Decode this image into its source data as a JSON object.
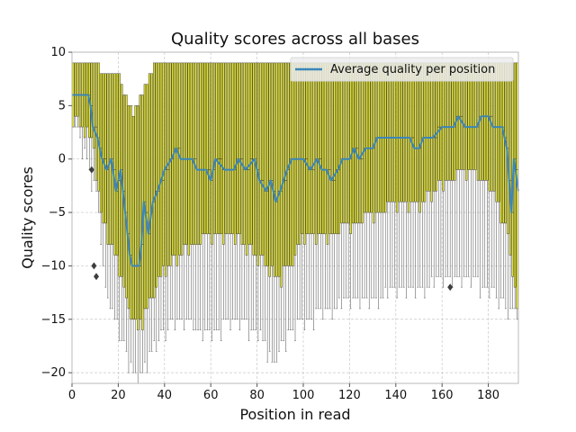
{
  "chart_data": {
    "type": "box",
    "title": "Quality scores across all bases",
    "xlabel": "Position in read",
    "ylabel": "Quality scores",
    "xlim": [
      0,
      193
    ],
    "ylim": [
      -21,
      10
    ],
    "x_ticks": [
      "0",
      "20",
      "40",
      "60",
      "80",
      "100",
      "120",
      "140",
      "160",
      "180"
    ],
    "y_ticks": [
      "10",
      "5",
      "0",
      "−5",
      "−10",
      "−15",
      "−20"
    ],
    "grid": true,
    "legend_position": "top-right",
    "box_color": "#e3e32a",
    "line_color": "#3a86b8",
    "series": [
      {
        "name": "Average quality per position",
        "type": "line",
        "key_points": [
          {
            "x": 0,
            "y": 6
          },
          {
            "x": 7,
            "y": 6
          },
          {
            "x": 8,
            "y": 5
          },
          {
            "x": 9,
            "y": 3
          },
          {
            "x": 11,
            "y": 2
          },
          {
            "x": 13,
            "y": 0
          },
          {
            "x": 15,
            "y": -1
          },
          {
            "x": 17,
            "y": 0
          },
          {
            "x": 19,
            "y": -3
          },
          {
            "x": 21,
            "y": -1
          },
          {
            "x": 23,
            "y": -5
          },
          {
            "x": 25,
            "y": -9
          },
          {
            "x": 26,
            "y": -10
          },
          {
            "x": 29,
            "y": -10
          },
          {
            "x": 30,
            "y": -8
          },
          {
            "x": 31,
            "y": -4
          },
          {
            "x": 33,
            "y": -7
          },
          {
            "x": 35,
            "y": -4
          },
          {
            "x": 37,
            "y": -3
          },
          {
            "x": 40,
            "y": -1
          },
          {
            "x": 43,
            "y": 0
          },
          {
            "x": 45,
            "y": 1
          },
          {
            "x": 47,
            "y": 0
          },
          {
            "x": 52,
            "y": 0
          },
          {
            "x": 54,
            "y": -1
          },
          {
            "x": 58,
            "y": -1
          },
          {
            "x": 60,
            "y": -2
          },
          {
            "x": 62,
            "y": 0
          },
          {
            "x": 66,
            "y": -1
          },
          {
            "x": 70,
            "y": -1
          },
          {
            "x": 72,
            "y": 0
          },
          {
            "x": 75,
            "y": -1
          },
          {
            "x": 79,
            "y": 0
          },
          {
            "x": 81,
            "y": -2
          },
          {
            "x": 84,
            "y": -3
          },
          {
            "x": 86,
            "y": -2
          },
          {
            "x": 88,
            "y": -4
          },
          {
            "x": 90,
            "y": -3
          },
          {
            "x": 93,
            "y": -1
          },
          {
            "x": 95,
            "y": 0
          },
          {
            "x": 100,
            "y": 0
          },
          {
            "x": 103,
            "y": -1
          },
          {
            "x": 106,
            "y": 0
          },
          {
            "x": 108,
            "y": -1
          },
          {
            "x": 110,
            "y": -1
          },
          {
            "x": 112,
            "y": -2
          },
          {
            "x": 115,
            "y": -1
          },
          {
            "x": 117,
            "y": 0
          },
          {
            "x": 120,
            "y": 0
          },
          {
            "x": 122,
            "y": 1
          },
          {
            "x": 124,
            "y": 0
          },
          {
            "x": 127,
            "y": 1
          },
          {
            "x": 130,
            "y": 1
          },
          {
            "x": 132,
            "y": 2
          },
          {
            "x": 138,
            "y": 2
          },
          {
            "x": 142,
            "y": 2
          },
          {
            "x": 146,
            "y": 2
          },
          {
            "x": 148,
            "y": 1
          },
          {
            "x": 150,
            "y": 1
          },
          {
            "x": 152,
            "y": 2
          },
          {
            "x": 156,
            "y": 2
          },
          {
            "x": 160,
            "y": 3
          },
          {
            "x": 163,
            "y": 3
          },
          {
            "x": 165,
            "y": 3
          },
          {
            "x": 167,
            "y": 4
          },
          {
            "x": 170,
            "y": 3
          },
          {
            "x": 175,
            "y": 3
          },
          {
            "x": 177,
            "y": 4
          },
          {
            "x": 180,
            "y": 4
          },
          {
            "x": 182,
            "y": 3
          },
          {
            "x": 186,
            "y": 3
          },
          {
            "x": 188,
            "y": 1
          },
          {
            "x": 190,
            "y": -5
          },
          {
            "x": 191,
            "y": 0
          },
          {
            "x": 193,
            "y": -3
          }
        ]
      }
    ],
    "box_envelope": {
      "positions": "0-192",
      "q3_key": [
        {
          "x": 0,
          "y": 9
        },
        {
          "x": 10,
          "y": 9
        },
        {
          "x": 12,
          "y": 8
        },
        {
          "x": 20,
          "y": 8
        },
        {
          "x": 22,
          "y": 6
        },
        {
          "x": 26,
          "y": 4
        },
        {
          "x": 30,
          "y": 6
        },
        {
          "x": 35,
          "y": 9
        },
        {
          "x": 192,
          "y": 9
        }
      ],
      "q1_key": [
        {
          "x": 0,
          "y": 4
        },
        {
          "x": 8,
          "y": 2
        },
        {
          "x": 10,
          "y": -1
        },
        {
          "x": 12,
          "y": -5
        },
        {
          "x": 16,
          "y": -8
        },
        {
          "x": 20,
          "y": -10
        },
        {
          "x": 24,
          "y": -14
        },
        {
          "x": 28,
          "y": -16
        },
        {
          "x": 32,
          "y": -14
        },
        {
          "x": 36,
          "y": -12
        },
        {
          "x": 40,
          "y": -10
        },
        {
          "x": 50,
          "y": -8
        },
        {
          "x": 60,
          "y": -7
        },
        {
          "x": 70,
          "y": -7
        },
        {
          "x": 80,
          "y": -9
        },
        {
          "x": 88,
          "y": -11
        },
        {
          "x": 94,
          "y": -10
        },
        {
          "x": 100,
          "y": -7
        },
        {
          "x": 110,
          "y": -7
        },
        {
          "x": 120,
          "y": -6
        },
        {
          "x": 130,
          "y": -5
        },
        {
          "x": 140,
          "y": -4
        },
        {
          "x": 150,
          "y": -4
        },
        {
          "x": 160,
          "y": -2
        },
        {
          "x": 170,
          "y": -1
        },
        {
          "x": 180,
          "y": -2
        },
        {
          "x": 188,
          "y": -7
        },
        {
          "x": 192,
          "y": -14
        }
      ],
      "low_whisker_key": [
        {
          "x": 0,
          "y": 4
        },
        {
          "x": 10,
          "y": -3
        },
        {
          "x": 14,
          "y": -12
        },
        {
          "x": 20,
          "y": -16
        },
        {
          "x": 26,
          "y": -20
        },
        {
          "x": 30,
          "y": -20
        },
        {
          "x": 36,
          "y": -17
        },
        {
          "x": 44,
          "y": -15
        },
        {
          "x": 60,
          "y": -16
        },
        {
          "x": 70,
          "y": -15
        },
        {
          "x": 80,
          "y": -16
        },
        {
          "x": 86,
          "y": -19
        },
        {
          "x": 94,
          "y": -16
        },
        {
          "x": 100,
          "y": -15
        },
        {
          "x": 110,
          "y": -14
        },
        {
          "x": 120,
          "y": -13
        },
        {
          "x": 130,
          "y": -13
        },
        {
          "x": 140,
          "y": -12
        },
        {
          "x": 150,
          "y": -12
        },
        {
          "x": 160,
          "y": -11
        },
        {
          "x": 170,
          "y": -11
        },
        {
          "x": 180,
          "y": -12
        },
        {
          "x": 188,
          "y": -14
        },
        {
          "x": 192,
          "y": -14
        }
      ]
    },
    "outliers": [
      {
        "x": 8,
        "y": -1
      },
      {
        "x": 9,
        "y": -10
      },
      {
        "x": 10,
        "y": -11
      },
      {
        "x": 163,
        "y": -12
      }
    ]
  }
}
